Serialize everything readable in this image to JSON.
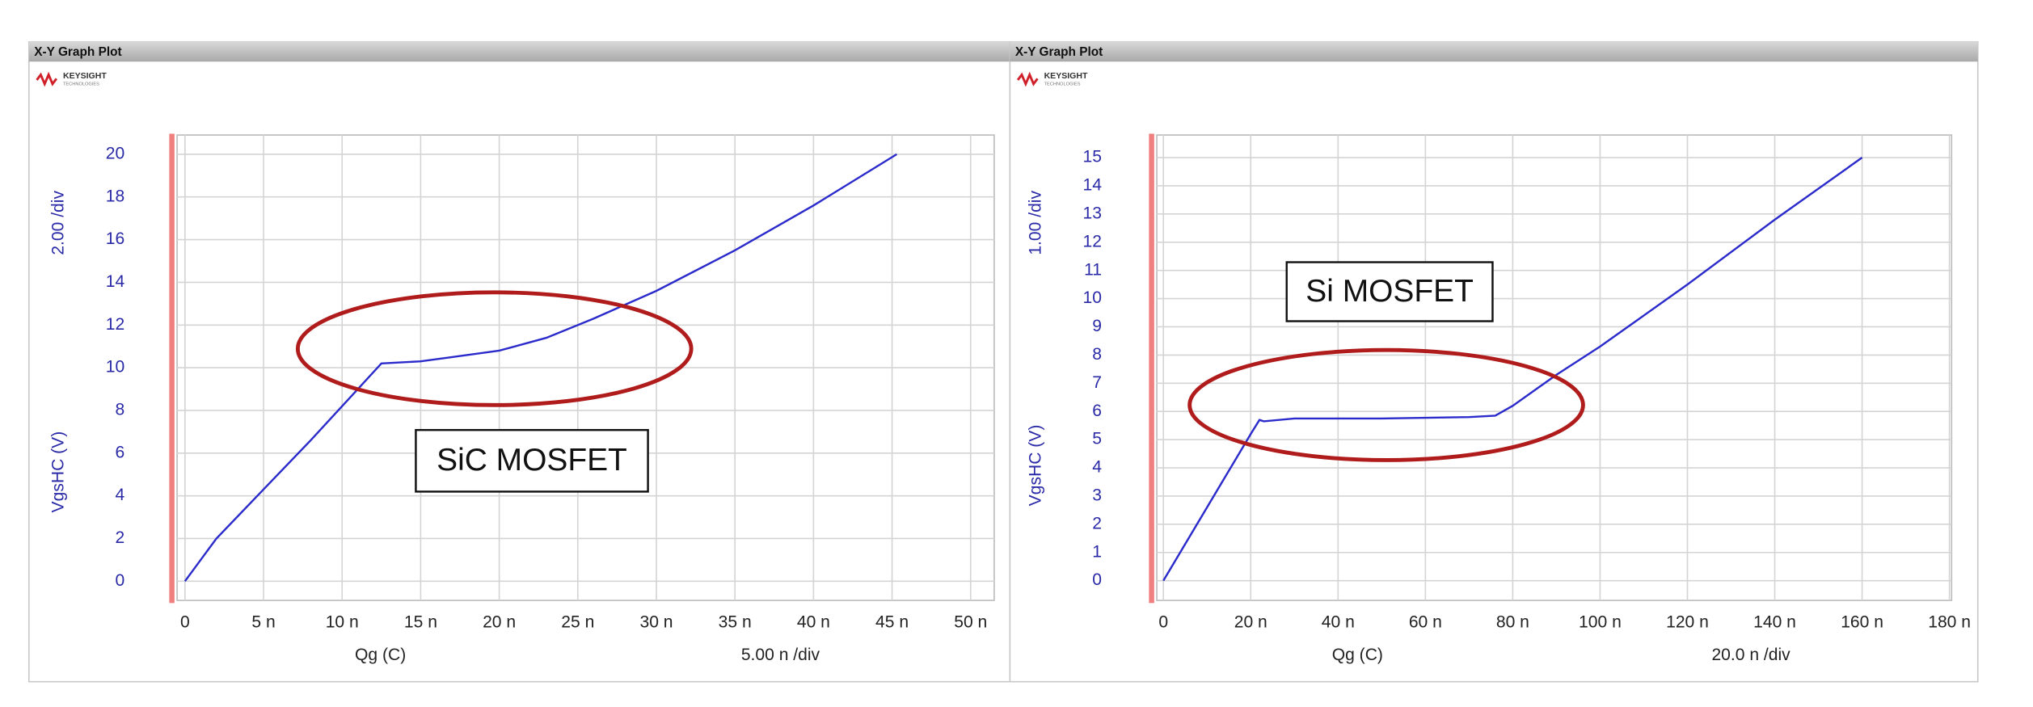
{
  "chart_data": [
    {
      "type": "line",
      "window_title": "X-Y Graph Plot",
      "logo": "KEYSIGHT",
      "logo_sub": "TECHNOLOGIES",
      "xlabel": "Qg (C)",
      "ylabel": "VgsHC (V)",
      "x_scale": "5.00 n /div",
      "y_scale": "2.00 /div",
      "annotation": "SiC MOSFET",
      "x": [
        0,
        2e-09,
        5e-09,
        8e-09,
        1.1e-08,
        1.25e-08,
        1.5e-08,
        1.7e-08,
        2e-08,
        2.3e-08,
        2.6e-08,
        3e-08,
        3.5e-08,
        4e-08,
        4.53e-08
      ],
      "series": [
        {
          "color": "#2b2bcc",
          "values": [
            0,
            2,
            4.3,
            6.6,
            9,
            10.2,
            10.3,
            10.5,
            10.8,
            11.4,
            12.3,
            13.6,
            15.5,
            17.6,
            20
          ]
        }
      ],
      "xlim": [
        -5e-10,
        5.15e-08
      ],
      "xticks": [
        0,
        {
          "value": 5e-09,
          "label": "5 n"
        },
        {
          "value": 1e-08,
          "label": "10 n"
        },
        {
          "value": 1.5e-08,
          "label": "15 n"
        },
        {
          "value": 2e-08,
          "label": "20 n"
        },
        {
          "value": 2.5e-08,
          "label": "25 n"
        },
        {
          "value": 3e-08,
          "label": "30 n"
        },
        {
          "value": 3.5e-08,
          "label": "35 n"
        },
        {
          "value": 4e-08,
          "label": "40 n"
        },
        {
          "value": 4.5e-08,
          "label": "45 n"
        },
        {
          "value": 5e-08,
          "label": "50 n"
        }
      ],
      "ylim": [
        -0.9,
        20.9
      ],
      "yticks": [
        0,
        2,
        4,
        6,
        8,
        10,
        12,
        14,
        16,
        18,
        20
      ],
      "grid": true
    },
    {
      "type": "line",
      "window_title": "X-Y Graph Plot",
      "logo": "KEYSIGHT",
      "logo_sub": "TECHNOLOGIES",
      "xlabel": "Qg (C)",
      "ylabel": "VgsHC (V)",
      "x_scale": "20.0 n /div",
      "y_scale": "1.00 /div",
      "annotation": "Si MOSFET",
      "x": [
        0,
        1e-08,
        2e-08,
        2.2e-08,
        2.3e-08,
        3e-08,
        5e-08,
        7e-08,
        7.6e-08,
        8e-08,
        9e-08,
        1e-07,
        1.2e-07,
        1.4e-07,
        1.6e-07
      ],
      "series": [
        {
          "color": "#2b2bcc",
          "values": [
            0,
            2.6,
            5.2,
            5.7,
            5.65,
            5.75,
            5.75,
            5.8,
            5.85,
            6.2,
            7.3,
            8.3,
            10.5,
            12.8,
            15
          ]
        }
      ],
      "xlim": [
        -1.5e-09,
        1.805e-07
      ],
      "xticks": [
        0,
        {
          "value": 2e-08,
          "label": "20 n"
        },
        {
          "value": 4e-08,
          "label": "40 n"
        },
        {
          "value": 6e-08,
          "label": "60 n"
        },
        {
          "value": 8e-08,
          "label": "80 n"
        },
        {
          "value": 1e-07,
          "label": "100 n"
        },
        {
          "value": 1.2e-07,
          "label": "120 n"
        },
        {
          "value": 1.4e-07,
          "label": "140 n"
        },
        {
          "value": 1.6e-07,
          "label": "160 n"
        },
        {
          "value": 1.8e-07,
          "label": "180 n"
        }
      ],
      "ylim": [
        -0.7,
        15.8
      ],
      "yticks": [
        0,
        1,
        2,
        3,
        4,
        5,
        6,
        7,
        8,
        9,
        10,
        11,
        12,
        13,
        14,
        15
      ],
      "grid": true
    }
  ]
}
